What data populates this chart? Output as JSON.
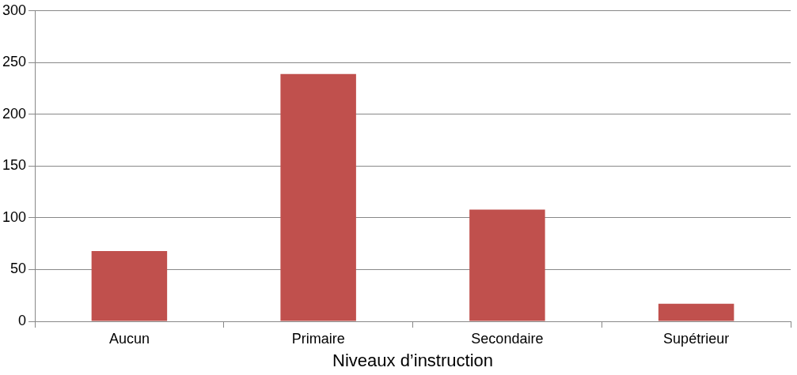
{
  "chart_data": {
    "type": "bar",
    "xlabel": "Niveaux d’instruction",
    "categories": [
      "Aucun",
      "Primaire",
      "Secondaire",
      "Supétrieur"
    ],
    "values": [
      68,
      239,
      108,
      17
    ],
    "color": "#c0504d",
    "ylim": [
      0,
      300
    ],
    "yticks": [
      0,
      50,
      100,
      150,
      200,
      250,
      300
    ],
    "grid": "y",
    "legend": false
  }
}
